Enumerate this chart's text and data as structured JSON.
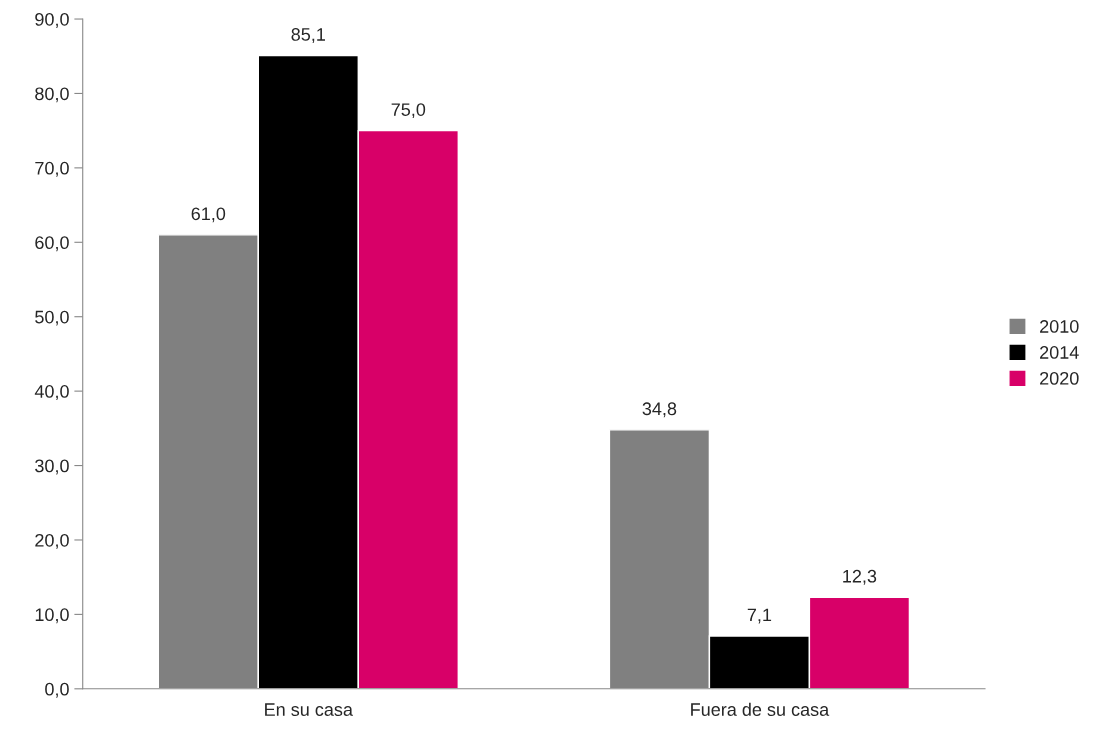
{
  "chart_data": {
    "type": "bar",
    "categories": [
      "En su casa",
      "Fuera de su casa"
    ],
    "series": [
      {
        "name": "2010",
        "color": "#808080",
        "values": [
          61.0,
          34.8
        ],
        "value_labels": [
          "61,0",
          "34,8"
        ]
      },
      {
        "name": "2014",
        "color": "#000000",
        "values": [
          85.1,
          7.1
        ],
        "value_labels": [
          "85,1",
          "7,1"
        ]
      },
      {
        "name": "2020",
        "color": "#d80068",
        "values": [
          75.0,
          12.3
        ],
        "value_labels": [
          "75,0",
          "12,3"
        ]
      }
    ],
    "ylim": [
      0,
      90
    ],
    "yticks": [
      {
        "value": 0,
        "label": "0,0"
      },
      {
        "value": 10,
        "label": "10,0"
      },
      {
        "value": 20,
        "label": "20,0"
      },
      {
        "value": 30,
        "label": "30,0"
      },
      {
        "value": 40,
        "label": "40,0"
      },
      {
        "value": 50,
        "label": "50,0"
      },
      {
        "value": 60,
        "label": "60,0"
      },
      {
        "value": 70,
        "label": "70,0"
      },
      {
        "value": 80,
        "label": "80,0"
      },
      {
        "value": 90,
        "label": "90,0"
      }
    ],
    "grid": false,
    "legend": "right"
  }
}
